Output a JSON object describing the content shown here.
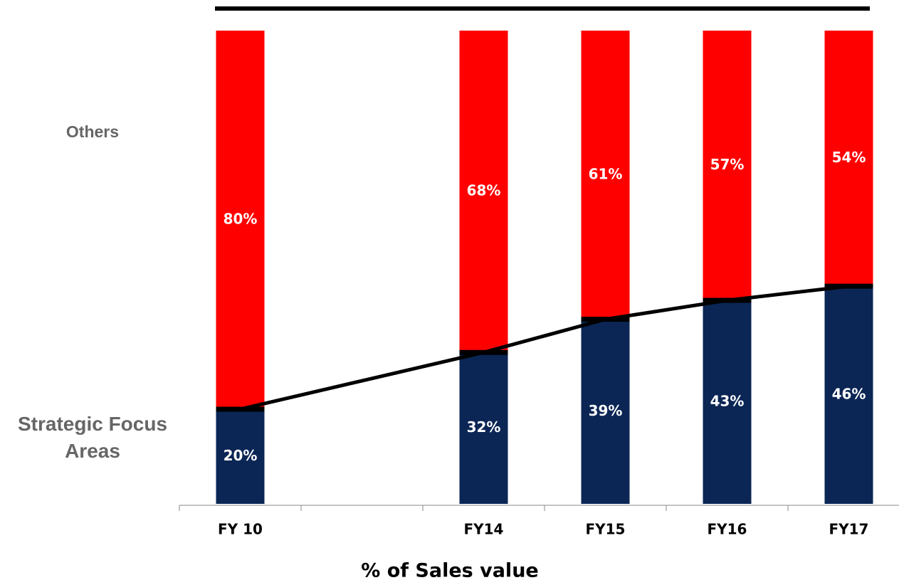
{
  "chart_data": {
    "type": "stacked_bar",
    "x_label": "% of Sales value",
    "categories": [
      "FY 10",
      null,
      "FY14",
      "FY15",
      "FY16",
      "FY17"
    ],
    "series": [
      {
        "name": "Strategic Focus Areas",
        "color": "#0b2655",
        "values": [
          20,
          null,
          32,
          39,
          43,
          46
        ],
        "value_labels": [
          "20%",
          null,
          "32%",
          "39%",
          "43%",
          "46%"
        ]
      },
      {
        "name": "Others",
        "color": "#ff0000",
        "values": [
          80,
          null,
          68,
          61,
          57,
          54
        ],
        "value_labels": [
          "80%",
          null,
          "68%",
          "61%",
          "57%",
          "54%"
        ]
      }
    ],
    "ylim": [
      0,
      100
    ]
  }
}
